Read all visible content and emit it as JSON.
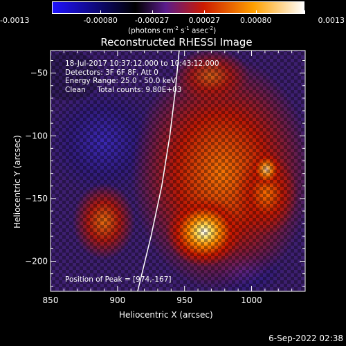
{
  "colorbar": {
    "tick_labels": [
      "-0.0013",
      "-0.00080",
      "-0.00027",
      "0.00027",
      "0.00080",
      "0.0013"
    ],
    "tick_values": [
      -0.0013,
      -0.0008,
      -0.00027,
      0.00027,
      0.0008,
      0.0013
    ],
    "range": [
      -0.0013,
      0.0013
    ],
    "units_base": "(photons cm",
    "units_exp1": "-2",
    "units_mid": " s",
    "units_exp2": "-1",
    "units_mid2": " asec",
    "units_exp3": "-2",
    "units_end": ")",
    "colors": [
      "#1f12ff",
      "#000000",
      "#5a1c8c",
      "#cc1a00",
      "#ffa000",
      "#ffffff"
    ]
  },
  "chart_data": {
    "type": "heatmap",
    "title": "Reconstructed RHESSI Image",
    "xlabel": "Heliocentric X (arcsec)",
    "ylabel": "Heliocentric Y (arcsec)",
    "xlim": [
      850,
      1040
    ],
    "ylim": [
      -224,
      -32
    ],
    "x_ticks": [
      850,
      900,
      950,
      1000
    ],
    "y_ticks": [
      -50,
      -100,
      -150,
      -200
    ],
    "x_tick_labels": [
      "850",
      "900",
      "950",
      "1000"
    ],
    "y_tick_labels": [
      "−50",
      "−100",
      "−150",
      "−200"
    ],
    "peak_position": [
      974,
      -167
    ],
    "limb_curve": [
      [
        915,
        -224
      ],
      [
        925,
        -180
      ],
      [
        933,
        -140
      ],
      [
        939,
        -100
      ],
      [
        943,
        -65
      ],
      [
        946,
        -32
      ]
    ],
    "info_lines": [
      "18-Jul-2017 10:37:12.000 to 10:43:12.000",
      "Detectors: 3F 6F 8F, Att 0",
      "Energy Range: 25.0 - 50.0 keV",
      "Clean     Total counts: 9.80E+03"
    ],
    "peak_text": "Position of Peak = [974,-167]",
    "grid": false
  },
  "footer": {
    "date": "6-Sep-2022 02:38"
  }
}
